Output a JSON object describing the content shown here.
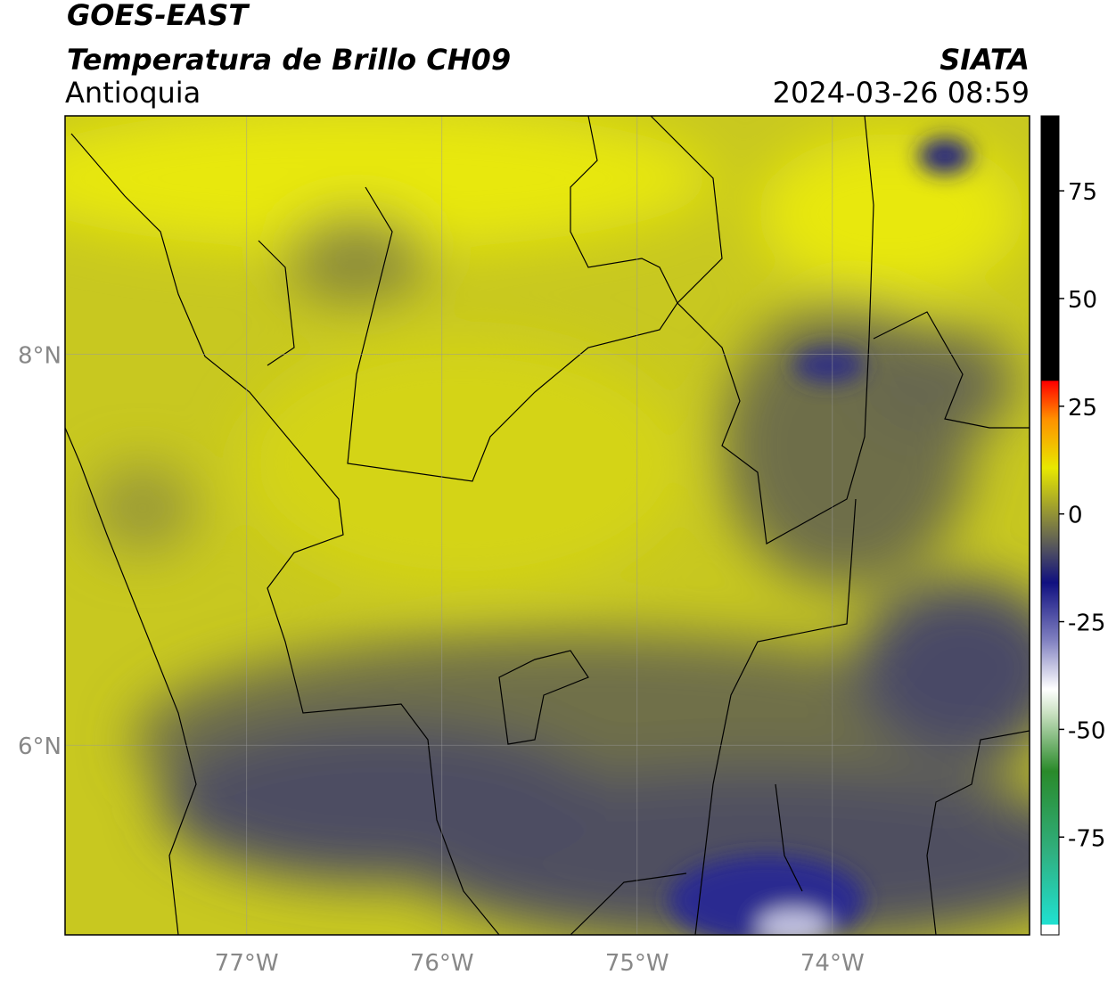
{
  "header": {
    "title": "GOES-EAST",
    "subtitle": "Temperatura de Brillo CH09",
    "region": "Antioquia",
    "source": "SIATA",
    "datetime": "2024-03-26 08:59"
  },
  "map": {
    "xlim": [
      -77.93,
      -72.99
    ],
    "ylim": [
      5.03,
      9.22
    ],
    "xticks": [
      {
        "value": -77,
        "label": "77°W"
      },
      {
        "value": -76,
        "label": "76°W"
      },
      {
        "value": -75,
        "label": "75°W"
      },
      {
        "value": -74,
        "label": "74°W"
      }
    ],
    "yticks": [
      {
        "value": 8,
        "label": "8°N"
      },
      {
        "value": 6,
        "label": "6°N"
      }
    ]
  },
  "colorbar": {
    "lim": [
      -97.7,
      92.4
    ],
    "ticks": [
      75,
      50,
      25,
      0,
      -25,
      -50,
      -75
    ]
  }
}
